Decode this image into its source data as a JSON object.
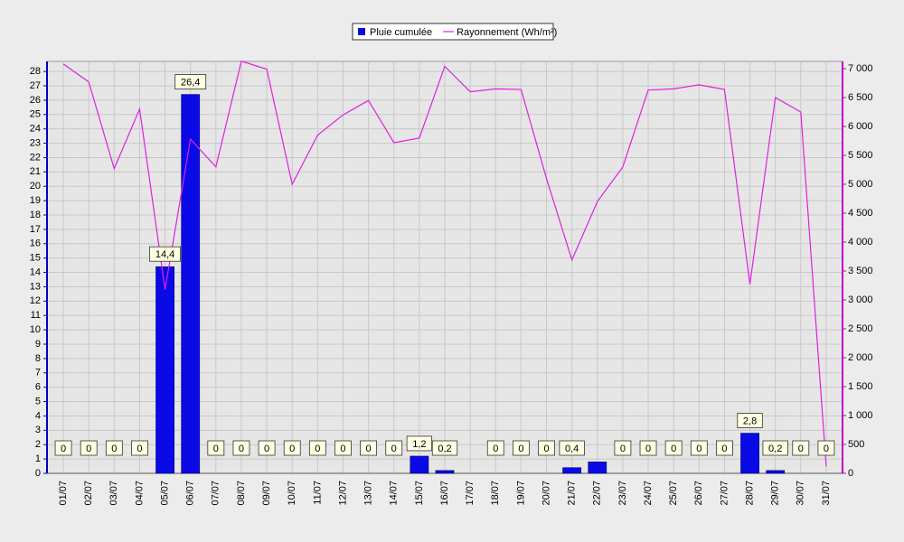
{
  "chart_data": {
    "type": "bar",
    "categories": [
      "01/07",
      "02/07",
      "03/07",
      "04/07",
      "05/07",
      "06/07",
      "07/07",
      "08/07",
      "09/07",
      "10/07",
      "11/07",
      "12/07",
      "13/07",
      "14/07",
      "15/07",
      "16/07",
      "17/07",
      "18/07",
      "19/07",
      "20/07",
      "21/07",
      "22/07",
      "23/07",
      "24/07",
      "25/07",
      "26/07",
      "27/07",
      "28/07",
      "29/07",
      "30/07",
      "31/07"
    ],
    "series": [
      {
        "name": "Pluie cumulée",
        "type": "bar",
        "color": "#0a0ae6",
        "values": [
          0,
          0,
          0,
          0,
          14.4,
          26.4,
          0,
          0,
          0,
          0,
          0,
          0,
          0,
          0,
          1.2,
          0.2,
          0,
          0,
          0,
          0,
          0.4,
          0.8,
          0,
          0,
          0,
          0,
          0,
          2.8,
          0.2,
          0,
          0
        ],
        "value_labels": [
          "0",
          "0",
          "0",
          "0",
          "14,4",
          "26,4",
          "0",
          "0",
          "0",
          "0",
          "0",
          "0",
          "0",
          "0",
          "1,2",
          "0,2",
          null,
          "0",
          "0",
          "0",
          "0,4",
          null,
          "0",
          "0",
          "0",
          "0",
          "0",
          "2,8",
          "0,2",
          "0",
          "0"
        ]
      },
      {
        "name": "Rayonnement (Wh/m²)",
        "type": "line",
        "axis": "y2",
        "color": "#e020e0",
        "values": [
          7080,
          6770,
          5270,
          6300,
          3180,
          5780,
          5300,
          7130,
          6990,
          5000,
          5850,
          6200,
          6450,
          5720,
          5800,
          7040,
          6600,
          6650,
          6640,
          5100,
          3690,
          4700,
          5300,
          6630,
          6650,
          6720,
          6640,
          3270,
          6500,
          6250,
          120
        ]
      }
    ],
    "ylim": [
      0,
      28.7
    ],
    "yticks": [
      0,
      1,
      2,
      3,
      4,
      5,
      6,
      7,
      8,
      9,
      10,
      11,
      12,
      13,
      14,
      15,
      16,
      17,
      18,
      19,
      20,
      21,
      22,
      23,
      24,
      25,
      26,
      27,
      28
    ],
    "y2lim": [
      0,
      7125
    ],
    "y2ticks": [
      0,
      500,
      {
        "value": 1000,
        "label": "1 000"
      },
      {
        "value": 1500,
        "label": "1 500"
      },
      {
        "value": 2000,
        "label": "2 000"
      },
      {
        "value": 2500,
        "label": "2 500"
      },
      {
        "value": 3000,
        "label": "3 000"
      },
      {
        "value": 3500,
        "label": "3 500"
      },
      {
        "value": 4000,
        "label": "4 000"
      },
      {
        "value": 4500,
        "label": "4 500"
      },
      {
        "value": 5000,
        "label": "5 000"
      },
      {
        "value": 5500,
        "label": "5 500"
      },
      {
        "value": 6000,
        "label": "6 000"
      },
      {
        "value": 6500,
        "label": "6 500"
      },
      {
        "value": 7000,
        "label": "7 000"
      }
    ],
    "grid": true,
    "legend": "top"
  }
}
